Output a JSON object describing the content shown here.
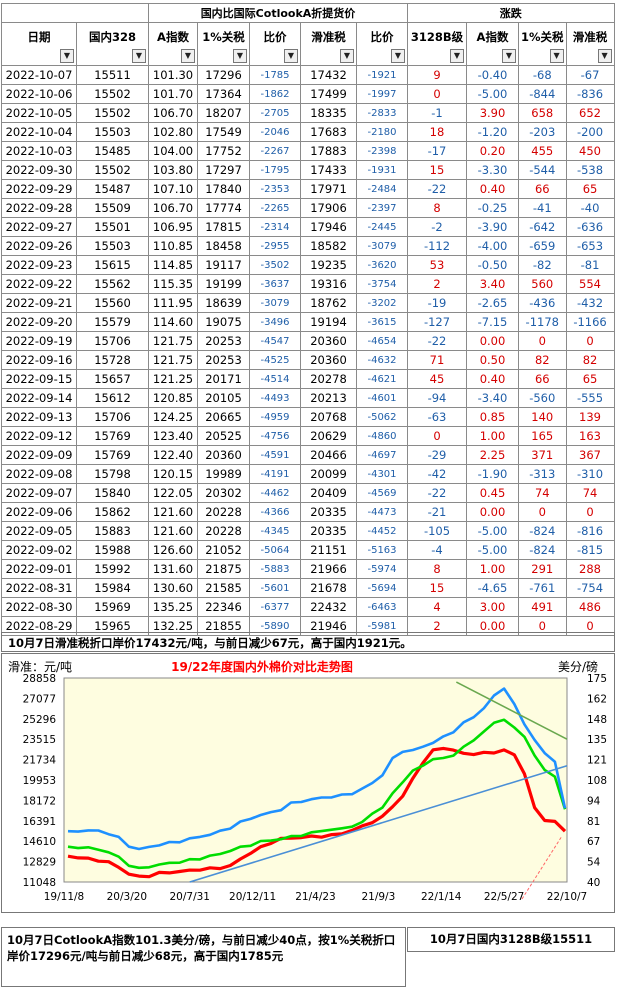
{
  "header": {
    "group_domestic": "国内比国际CotlookA折提货价",
    "group_change": "涨跌",
    "cols": [
      "日期",
      "国内328",
      "A指数",
      "1%关税",
      "比价",
      "滑准税",
      "比价",
      "3128B级",
      "A指数",
      "1%关税",
      "滑准税"
    ]
  },
  "rows": [
    [
      "2022-10-07",
      "15511",
      "101.30",
      "17296",
      "-1785",
      "17432",
      "-1921",
      "9",
      "-0.40",
      "-68",
      "-67"
    ],
    [
      "2022-10-06",
      "15502",
      "101.70",
      "17364",
      "-1862",
      "17499",
      "-1997",
      "0",
      "-5.00",
      "-844",
      "-836"
    ],
    [
      "2022-10-05",
      "15502",
      "106.70",
      "18207",
      "-2705",
      "18335",
      "-2833",
      "-1",
      "3.90",
      "658",
      "652"
    ],
    [
      "2022-10-04",
      "15503",
      "102.80",
      "17549",
      "-2046",
      "17683",
      "-2180",
      "18",
      "-1.20",
      "-203",
      "-200"
    ],
    [
      "2022-10-03",
      "15485",
      "104.00",
      "17752",
      "-2267",
      "17883",
      "-2398",
      "-17",
      "0.20",
      "455",
      "450"
    ],
    [
      "2022-09-30",
      "15502",
      "103.80",
      "17297",
      "-1795",
      "17433",
      "-1931",
      "15",
      "-3.30",
      "-544",
      "-538"
    ],
    [
      "2022-09-29",
      "15487",
      "107.10",
      "17840",
      "-2353",
      "17971",
      "-2484",
      "-22",
      "0.40",
      "66",
      "65"
    ],
    [
      "2022-09-28",
      "15509",
      "106.70",
      "17774",
      "-2265",
      "17906",
      "-2397",
      "8",
      "-0.25",
      "-41",
      "-40"
    ],
    [
      "2022-09-27",
      "15501",
      "106.95",
      "17815",
      "-2314",
      "17946",
      "-2445",
      "-2",
      "-3.90",
      "-642",
      "-636"
    ],
    [
      "2022-09-26",
      "15503",
      "110.85",
      "18458",
      "-2955",
      "18582",
      "-3079",
      "-112",
      "-4.00",
      "-659",
      "-653"
    ],
    [
      "2022-09-23",
      "15615",
      "114.85",
      "19117",
      "-3502",
      "19235",
      "-3620",
      "53",
      "-0.50",
      "-82",
      "-81"
    ],
    [
      "2022-09-22",
      "15562",
      "115.35",
      "19199",
      "-3637",
      "19316",
      "-3754",
      "2",
      "3.40",
      "560",
      "554"
    ],
    [
      "2022-09-21",
      "15560",
      "111.95",
      "18639",
      "-3079",
      "18762",
      "-3202",
      "-19",
      "-2.65",
      "-436",
      "-432"
    ],
    [
      "2022-09-20",
      "15579",
      "114.60",
      "19075",
      "-3496",
      "19194",
      "-3615",
      "-127",
      "-7.15",
      "-1178",
      "-1166"
    ],
    [
      "2022-09-19",
      "15706",
      "121.75",
      "20253",
      "-4547",
      "20360",
      "-4654",
      "-22",
      "0.00",
      "0",
      "0"
    ],
    [
      "2022-09-16",
      "15728",
      "121.75",
      "20253",
      "-4525",
      "20360",
      "-4632",
      "71",
      "0.50",
      "82",
      "82"
    ],
    [
      "2022-09-15",
      "15657",
      "121.25",
      "20171",
      "-4514",
      "20278",
      "-4621",
      "45",
      "0.40",
      "66",
      "65"
    ],
    [
      "2022-09-14",
      "15612",
      "120.85",
      "20105",
      "-4493",
      "20213",
      "-4601",
      "-94",
      "-3.40",
      "-560",
      "-555"
    ],
    [
      "2022-09-13",
      "15706",
      "124.25",
      "20665",
      "-4959",
      "20768",
      "-5062",
      "-63",
      "0.85",
      "140",
      "139"
    ],
    [
      "2022-09-12",
      "15769",
      "123.40",
      "20525",
      "-4756",
      "20629",
      "-4860",
      "0",
      "1.00",
      "165",
      "163"
    ],
    [
      "2022-09-09",
      "15769",
      "122.40",
      "20360",
      "-4591",
      "20466",
      "-4697",
      "-29",
      "2.25",
      "371",
      "367"
    ],
    [
      "2022-09-08",
      "15798",
      "120.15",
      "19989",
      "-4191",
      "20099",
      "-4301",
      "-42",
      "-1.90",
      "-313",
      "-310"
    ],
    [
      "2022-09-07",
      "15840",
      "122.05",
      "20302",
      "-4462",
      "20409",
      "-4569",
      "-22",
      "0.45",
      "74",
      "74"
    ],
    [
      "2022-09-06",
      "15862",
      "121.60",
      "20228",
      "-4366",
      "20335",
      "-4473",
      "-21",
      "0.00",
      "0",
      "0"
    ],
    [
      "2022-09-05",
      "15883",
      "121.60",
      "20228",
      "-4345",
      "20335",
      "-4452",
      "-105",
      "-5.00",
      "-824",
      "-816"
    ],
    [
      "2022-09-02",
      "15988",
      "126.60",
      "21052",
      "-5064",
      "21151",
      "-5163",
      "-4",
      "-5.00",
      "-824",
      "-815"
    ],
    [
      "2022-09-01",
      "15992",
      "131.60",
      "21875",
      "-5883",
      "21966",
      "-5974",
      "8",
      "1.00",
      "291",
      "288"
    ],
    [
      "2022-08-31",
      "15984",
      "130.60",
      "21585",
      "-5601",
      "21678",
      "-5694",
      "15",
      "-4.65",
      "-761",
      "-754"
    ],
    [
      "2022-08-30",
      "15969",
      "135.25",
      "22346",
      "-6377",
      "22432",
      "-6463",
      "4",
      "3.00",
      "491",
      "486"
    ],
    [
      "2022-08-29",
      "15965",
      "132.25",
      "21855",
      "-5890",
      "21946",
      "-5981",
      "2",
      "0.00",
      "0",
      "0"
    ]
  ],
  "notes": {
    "top": "10月7日滑准税折口岸价17432元/吨，与前日减少67元，高于国内1921元。",
    "bottom": "10月7日CotlookA指数101.3美分/磅，与前日减少40点，按1%关税折口岸价17296元/吨与前日减少68元，高于国内1785元",
    "right": "10月7日国内3128B级15511"
  },
  "chart_data": {
    "type": "line",
    "title": "19/22年度国内外棉价对比走势图",
    "ylabel_left": "滑准：元/吨",
    "ylabel_right": "美分/磅",
    "x_ticks": [
      "19/11/8",
      "20/3/20",
      "20/7/31",
      "20/12/11",
      "21/4/23",
      "21/9/3",
      "22/1/14",
      "22/5/27",
      "22/10/7"
    ],
    "y_left_ticks": [
      11048,
      12829,
      14610,
      16391,
      18172,
      19953,
      21734,
      23515,
      25296,
      27077,
      28858
    ],
    "y_right_ticks": [
      40,
      54,
      67,
      81,
      94,
      108,
      121,
      135,
      148,
      162,
      175
    ],
    "series": [
      {
        "color": "#ff0000",
        "axis": "left",
        "values": [
          13300,
          13200,
          13050,
          12950,
          12750,
          12350,
          11750,
          11500,
          11600,
          11800,
          11900,
          11950,
          12050,
          12150,
          12200,
          12300,
          12450,
          13050,
          13600,
          14050,
          14500,
          14800,
          14900,
          14950,
          15000,
          15050,
          15100,
          15300,
          15550,
          15900,
          16300,
          16700,
          17700,
          18500,
          20100,
          21500,
          22500,
          22800,
          22500,
          22300,
          22200,
          22300,
          22400,
          22500,
          22200,
          20500,
          17500,
          16500,
          16250,
          15550
        ]
      },
      {
        "color": "#00dd00",
        "axis": "left",
        "values": [
          14050,
          14100,
          14000,
          13900,
          13650,
          13200,
          12550,
          12200,
          12400,
          12550,
          12700,
          12800,
          12950,
          13100,
          13300,
          13500,
          13800,
          14050,
          14300,
          14550,
          14700,
          14800,
          15000,
          15150,
          15300,
          15550,
          15600,
          15700,
          15950,
          16200,
          17100,
          17500,
          18800,
          19800,
          20700,
          21300,
          21700,
          21900,
          22100,
          22800,
          23500,
          24100,
          25000,
          25200,
          24500,
          23800,
          22000,
          20900,
          20200,
          17400
        ]
      },
      {
        "color": "#1e90ff",
        "axis": "left",
        "values": [
          15400,
          15500,
          15550,
          15500,
          15300,
          14900,
          14200,
          13900,
          14100,
          14300,
          14450,
          14600,
          14800,
          15000,
          15200,
          15450,
          15800,
          16250,
          16600,
          16900,
          17100,
          17400,
          17900,
          18100,
          18250,
          18400,
          18500,
          18600,
          18800,
          19150,
          19700,
          20400,
          21800,
          22500,
          22500,
          22900,
          23200,
          23700,
          24200,
          24900,
          25500,
          26200,
          27300,
          28000,
          26500,
          24900,
          23400,
          22300,
          21600,
          17400
        ]
      }
    ],
    "lines": [
      {
        "color": "#4a8fd6",
        "from": [
          0.25,
          1.0
        ],
        "to": [
          1.0,
          0.43
        ]
      },
      {
        "color": "#6aa84f",
        "from": [
          0.78,
          0.02
        ],
        "to": [
          1.0,
          0.3
        ]
      }
    ]
  }
}
